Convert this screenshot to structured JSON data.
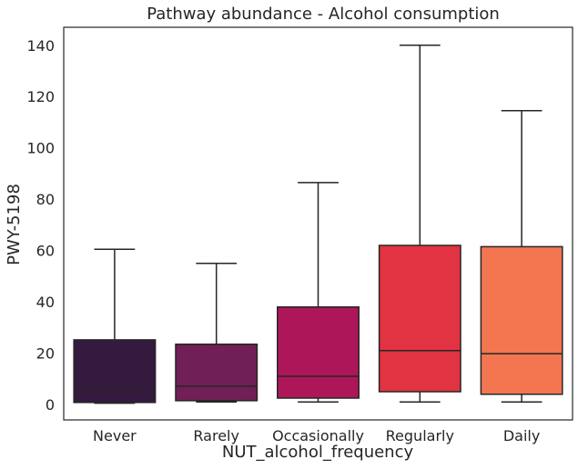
{
  "chart_data": {
    "type": "box",
    "title": "Pathway abundance - Alcohol consumption",
    "xlabel": "NUT_alcohol_frequency",
    "ylabel": "PWY-5198",
    "ylim": [
      -6,
      147
    ],
    "yticks": [
      0,
      20,
      40,
      60,
      80,
      100,
      120,
      140
    ],
    "grid": false,
    "categories": [
      "Never",
      "Rarely",
      "Occasionally",
      "Regularly",
      "Daily"
    ],
    "boxes": [
      {
        "category": "Never",
        "whisker_low": 0.5,
        "q1": 0.8,
        "median": 5.8,
        "q3": 25.2,
        "whisker_high": 60.5,
        "color": "#35193e"
      },
      {
        "category": "Rarely",
        "whisker_low": 1.0,
        "q1": 1.5,
        "median": 7.2,
        "q3": 23.5,
        "whisker_high": 55.0,
        "color": "#701f57"
      },
      {
        "category": "Occasionally",
        "whisker_low": 1.0,
        "q1": 2.5,
        "median": 11.0,
        "q3": 38.0,
        "whisker_high": 86.5,
        "color": "#ad1759"
      },
      {
        "category": "Regularly",
        "whisker_low": 1.0,
        "q1": 5.0,
        "median": 21.0,
        "q3": 62.0,
        "whisker_high": 140.0,
        "color": "#e13342"
      },
      {
        "category": "Daily",
        "whisker_low": 1.0,
        "q1": 4.0,
        "median": 19.8,
        "q3": 61.5,
        "whisker_high": 114.5,
        "color": "#f37651"
      }
    ]
  }
}
